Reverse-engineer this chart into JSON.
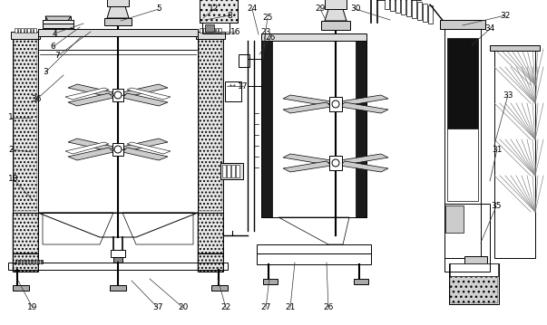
{
  "bg_color": "#ffffff",
  "line_color": "#000000",
  "label_color": "#000000",
  "fig_w": 6.03,
  "fig_h": 3.59,
  "dpi": 100
}
